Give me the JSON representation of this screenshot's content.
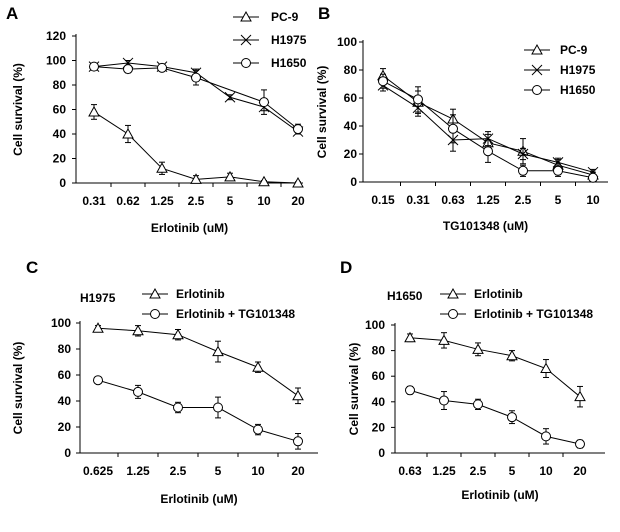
{
  "chart_data": [
    {
      "panel": "A",
      "type": "line",
      "subtitle": "",
      "xlabel": "Erlotinib (uM)",
      "ylabel": "Cell survival (%)",
      "categories": [
        "0.31",
        "0.62",
        "1.25",
        "2.5",
        "5",
        "10",
        "20"
      ],
      "ylim": [
        0,
        120
      ],
      "yticks": [
        0,
        20,
        40,
        60,
        80,
        100,
        120
      ],
      "grid": false,
      "legend_position": "top-right",
      "series": [
        {
          "name": "PC-9",
          "marker": "triangle",
          "values": [
            58,
            40,
            12,
            3,
            5,
            1,
            0
          ],
          "errors": [
            6,
            7,
            5,
            3,
            3,
            1,
            1
          ]
        },
        {
          "name": "H1975",
          "marker": "cross",
          "values": [
            95,
            98,
            95,
            90,
            70,
            62,
            42
          ],
          "errors": [
            2,
            2,
            2,
            3,
            2,
            3,
            2
          ]
        },
        {
          "name": "H1650",
          "marker": "circle",
          "values": [
            95,
            93,
            94,
            86,
            null,
            66,
            44
          ],
          "errors": [
            2,
            3,
            2,
            6,
            0,
            10,
            4
          ]
        }
      ]
    },
    {
      "panel": "B",
      "type": "line",
      "subtitle": "",
      "xlabel": "TG101348 (uM)",
      "ylabel": "Cell survival (%)",
      "categories": [
        "0.15",
        "0.31",
        "0.63",
        "1.25",
        "2.5",
        "5",
        "10"
      ],
      "ylim": [
        0,
        100
      ],
      "yticks": [
        0,
        20,
        40,
        60,
        80,
        100
      ],
      "grid": false,
      "legend_position": "top-right",
      "series": [
        {
          "name": "PC-9",
          "marker": "triangle",
          "values": [
            76,
            57,
            45,
            28,
            22,
            12,
            5
          ],
          "errors": [
            5,
            8,
            7,
            6,
            9,
            4,
            2
          ]
        },
        {
          "name": "H1975",
          "marker": "cross",
          "values": [
            69,
            53,
            30,
            31,
            20,
            14,
            7
          ],
          "errors": [
            4,
            6,
            8,
            5,
            4,
            3,
            2
          ]
        },
        {
          "name": "H1650",
          "marker": "circle",
          "values": [
            72,
            59,
            38,
            22,
            8,
            8,
            3
          ],
          "errors": [
            5,
            9,
            10,
            8,
            4,
            4,
            2
          ]
        }
      ]
    },
    {
      "panel": "C",
      "type": "line",
      "subtitle": "H1975",
      "xlabel": "Erlotinib (uM)",
      "ylabel": "Cell survival (%)",
      "categories": [
        "0.625",
        "1.25",
        "2.5",
        "5",
        "10",
        "20"
      ],
      "ylim": [
        0,
        100
      ],
      "yticks": [
        0,
        20,
        40,
        60,
        80,
        100
      ],
      "grid": false,
      "legend_position": "top",
      "series": [
        {
          "name": "Erlotinib",
          "marker": "triangle",
          "values": [
            96,
            94,
            91,
            78,
            66,
            44
          ],
          "errors": [
            2,
            4,
            4,
            8,
            4,
            6
          ]
        },
        {
          "name": "Erlotinib + TG101348",
          "marker": "circle",
          "values": [
            56,
            47,
            35,
            35,
            18,
            9
          ],
          "errors": [
            2,
            5,
            4,
            8,
            4,
            6
          ]
        }
      ]
    },
    {
      "panel": "D",
      "type": "line",
      "subtitle": "H1650",
      "xlabel": "Erlotinib (uM)",
      "ylabel": "Cell survival (%)",
      "categories": [
        "0.63",
        "1.25",
        "2.5",
        "5",
        "10",
        "20"
      ],
      "ylim": [
        0,
        100
      ],
      "yticks": [
        0,
        20,
        40,
        60,
        80,
        100
      ],
      "grid": false,
      "legend_position": "top",
      "series": [
        {
          "name": "Erlotinib",
          "marker": "triangle",
          "values": [
            90,
            88,
            81,
            76,
            66,
            44
          ],
          "errors": [
            3,
            6,
            5,
            4,
            7,
            8
          ]
        },
        {
          "name": "Erlotinib + TG101348",
          "marker": "circle",
          "values": [
            49,
            41,
            38,
            28,
            13,
            7
          ],
          "errors": [
            3,
            7,
            4,
            5,
            6,
            3
          ]
        }
      ]
    }
  ]
}
